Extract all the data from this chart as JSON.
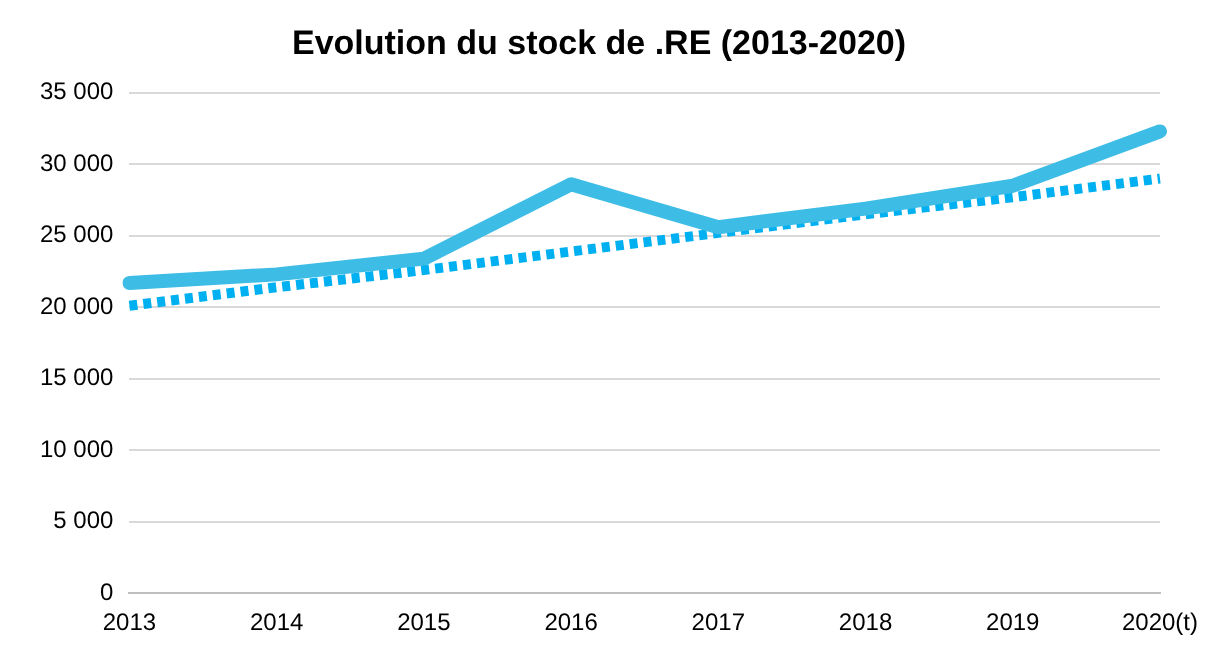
{
  "chart_data": {
    "type": "line",
    "title": "Evolution du stock de .RE (2013-2020)",
    "categories": [
      "2013",
      "2014",
      "2015",
      "2016",
      "2017",
      "2018",
      "2019",
      "2020(t)"
    ],
    "series": [
      {
        "color": "#3dbce6",
        "values": [
          21700,
          22300,
          23400,
          28600,
          25600,
          26900,
          28500,
          32300
        ],
        "line_style": "solid"
      },
      {
        "color": "#00b0f0",
        "values": [
          20100,
          21400,
          22600,
          23900,
          25200,
          26500,
          27700,
          29000
        ],
        "line_style": "dotted"
      }
    ],
    "ylim": [
      0,
      35000
    ],
    "yticks": [
      {
        "value": 0,
        "label": "0"
      },
      {
        "value": 5000,
        "label": "5 000"
      },
      {
        "value": 10000,
        "label": "10 000"
      },
      {
        "value": 15000,
        "label": "15 000"
      },
      {
        "value": 20000,
        "label": "20 000"
      },
      {
        "value": 25000,
        "label": "25 000"
      },
      {
        "value": 30000,
        "label": "30 000"
      },
      {
        "value": 35000,
        "label": "35 000"
      }
    ],
    "grid": "y",
    "legend": false,
    "marker": "none"
  }
}
